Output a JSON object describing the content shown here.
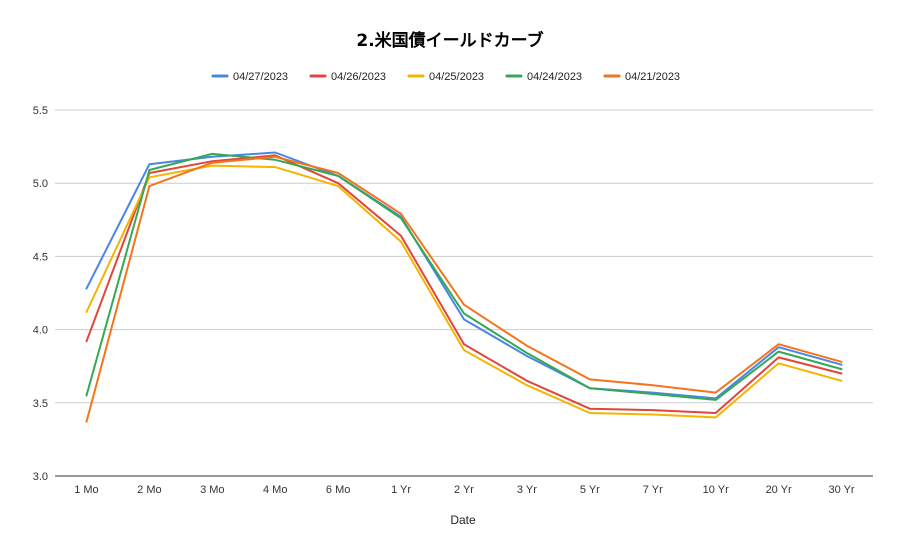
{
  "chart_data": {
    "type": "line",
    "title": "2.米国債イールドカーブ",
    "xlabel": "Date",
    "ylabel": "",
    "categories": [
      "1 Mo",
      "2 Mo",
      "3 Mo",
      "4 Mo",
      "6 Mo",
      "1 Yr",
      "2 Yr",
      "3 Yr",
      "5 Yr",
      "7 Yr",
      "10 Yr",
      "20 Yr",
      "30 Yr"
    ],
    "ylim": [
      3.0,
      5.5
    ],
    "yticks": [
      "3.0",
      "3.5",
      "4.0",
      "4.5",
      "5.0",
      "5.5"
    ],
    "grid": true,
    "legend": "top",
    "series": [
      {
        "name": "04/27/2023",
        "color": "#4a86e8",
        "values": [
          4.28,
          5.13,
          5.18,
          5.21,
          5.05,
          4.77,
          4.07,
          3.82,
          3.6,
          3.57,
          3.53,
          3.88,
          3.76
        ]
      },
      {
        "name": "04/26/2023",
        "color": "#e0463c",
        "values": [
          3.92,
          5.07,
          5.15,
          5.19,
          5.0,
          4.64,
          3.9,
          3.65,
          3.46,
          3.45,
          3.43,
          3.81,
          3.7
        ]
      },
      {
        "name": "04/25/2023",
        "color": "#f4b400",
        "values": [
          4.12,
          5.04,
          5.12,
          5.11,
          4.98,
          4.6,
          3.86,
          3.62,
          3.43,
          3.42,
          3.4,
          3.77,
          3.65
        ]
      },
      {
        "name": "04/24/2023",
        "color": "#34a853",
        "values": [
          3.55,
          5.09,
          5.2,
          5.16,
          5.05,
          4.76,
          4.11,
          3.84,
          3.6,
          3.56,
          3.52,
          3.85,
          3.73
        ]
      },
      {
        "name": "04/21/2023",
        "color": "#f4741c",
        "values": [
          3.37,
          4.98,
          5.14,
          5.18,
          5.07,
          4.79,
          4.17,
          3.89,
          3.66,
          3.62,
          3.57,
          3.9,
          3.78
        ]
      }
    ]
  }
}
